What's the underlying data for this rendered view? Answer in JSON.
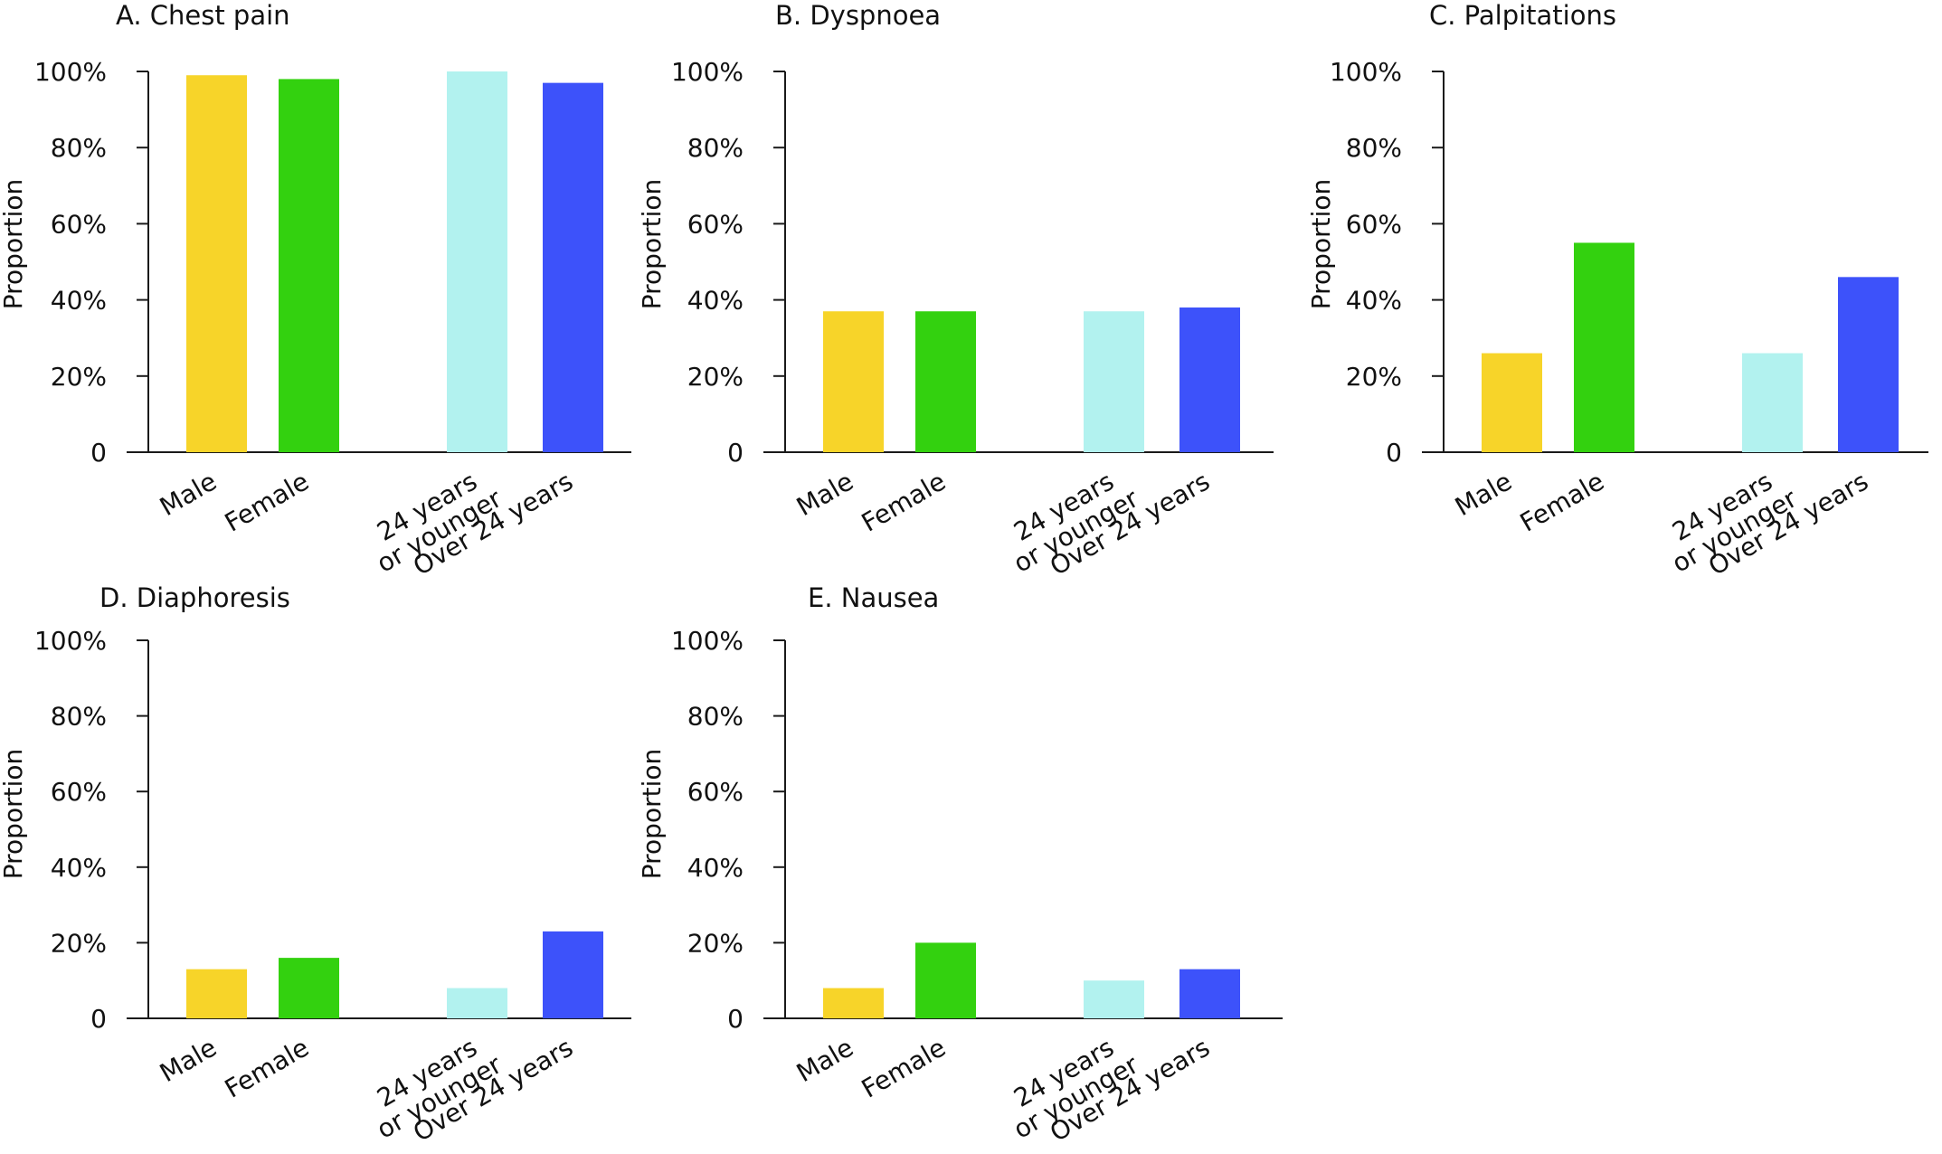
{
  "chart_data": [
    {
      "type": "bar",
      "title": "A. Chest pain",
      "ylabel": "Proportion",
      "xlabel": "",
      "ylim": [
        0,
        100
      ],
      "yticks": [
        "0",
        "20%",
        "40%",
        "60%",
        "80%",
        "100%"
      ],
      "categories": [
        [
          "Male"
        ],
        [
          "Female"
        ],
        [
          "24 years",
          "or younger"
        ],
        [
          "Over 24 years"
        ]
      ],
      "values": [
        99,
        98,
        100,
        97
      ],
      "colors": [
        "#F7D429",
        "#33D10F",
        "#B2F2EF",
        "#3D52FA"
      ]
    },
    {
      "type": "bar",
      "title": "B. Dyspnoea",
      "ylabel": "Proportion",
      "xlabel": "",
      "ylim": [
        0,
        100
      ],
      "yticks": [
        "0",
        "20%",
        "40%",
        "60%",
        "80%",
        "100%"
      ],
      "categories": [
        [
          "Male"
        ],
        [
          "Female"
        ],
        [
          "24 years",
          "or younger"
        ],
        [
          "Over 24 years"
        ]
      ],
      "values": [
        37,
        37,
        37,
        38
      ],
      "colors": [
        "#F7D429",
        "#33D10F",
        "#B2F2EF",
        "#3D52FA"
      ]
    },
    {
      "type": "bar",
      "title": "C. Palpitations",
      "ylabel": "Proportion",
      "xlabel": "",
      "ylim": [
        0,
        100
      ],
      "yticks": [
        "0",
        "20%",
        "40%",
        "60%",
        "80%",
        "100%"
      ],
      "categories": [
        [
          "Male"
        ],
        [
          "Female"
        ],
        [
          "24 years",
          "or younger"
        ],
        [
          "Over 24 years"
        ]
      ],
      "values": [
        26,
        55,
        26,
        46
      ],
      "colors": [
        "#F7D429",
        "#33D10F",
        "#B2F2EF",
        "#3D52FA"
      ]
    },
    {
      "type": "bar",
      "title": "D. Diaphoresis",
      "ylabel": "Proportion",
      "xlabel": "",
      "ylim": [
        0,
        100
      ],
      "yticks": [
        "0",
        "20%",
        "40%",
        "60%",
        "80%",
        "100%"
      ],
      "categories": [
        [
          "Male"
        ],
        [
          "Female"
        ],
        [
          "24 years",
          "or younger"
        ],
        [
          "Over 24 years"
        ]
      ],
      "values": [
        13,
        16,
        8,
        23
      ],
      "colors": [
        "#F7D429",
        "#33D10F",
        "#B2F2EF",
        "#3D52FA"
      ]
    },
    {
      "type": "bar",
      "title": "E. Nausea",
      "ylabel": "Proportion",
      "xlabel": "",
      "ylim": [
        0,
        100
      ],
      "yticks": [
        "0",
        "20%",
        "40%",
        "60%",
        "80%",
        "100%"
      ],
      "categories": [
        [
          "Male"
        ],
        [
          "Female"
        ],
        [
          "24 years",
          "or younger"
        ],
        [
          "Over 24 years"
        ]
      ],
      "values": [
        8,
        20,
        10,
        13
      ],
      "colors": [
        "#F7D429",
        "#33D10F",
        "#B2F2EF",
        "#3D52FA"
      ]
    }
  ]
}
